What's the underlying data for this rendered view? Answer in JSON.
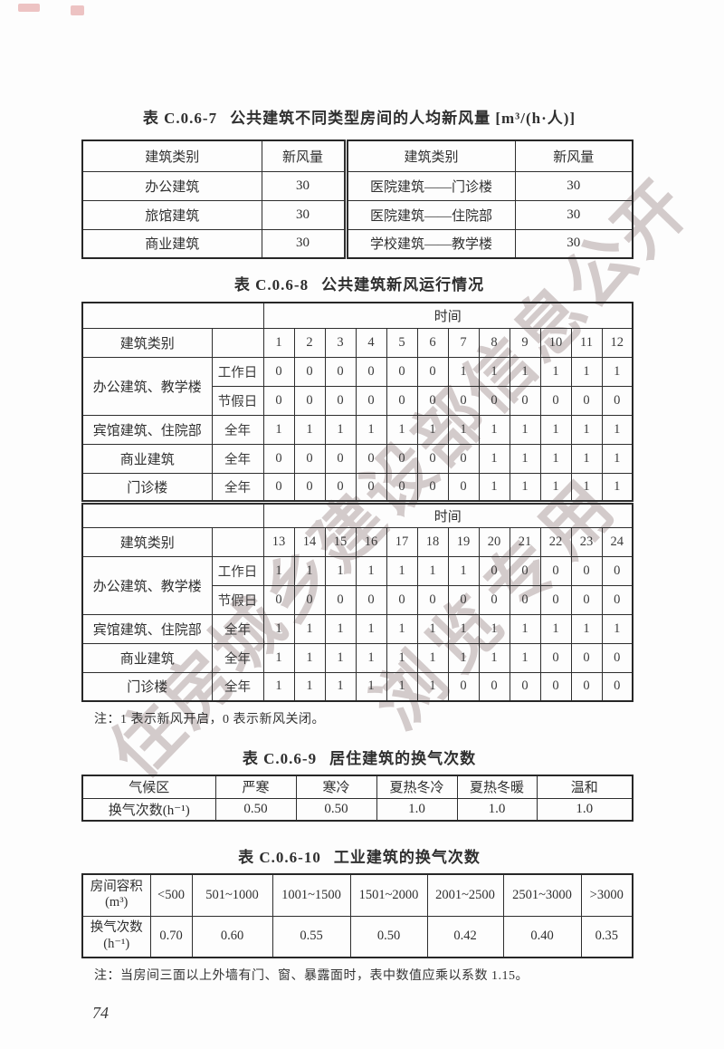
{
  "watermark": {
    "line1": "住房城乡建设部信息公开",
    "line2": "浏览专用",
    "color": "#a69494",
    "stamp_color": "#cd5555"
  },
  "table7": {
    "id": "表 C.0.6-7",
    "title": "公共建筑不同类型房间的人均新风量",
    "unit": "[m³/(h·人)]",
    "headers": [
      "建筑类别",
      "新风量",
      "建筑类别",
      "新风量"
    ],
    "rows": [
      [
        "办公建筑",
        "30",
        "医院建筑——门诊楼",
        "30"
      ],
      [
        "旅馆建筑",
        "30",
        "医院建筑——住院部",
        "30"
      ],
      [
        "商业建筑",
        "30",
        "学校建筑——教学楼",
        "30"
      ]
    ]
  },
  "table8": {
    "id": "表 C.0.6-8",
    "title": "公共建筑新风运行情况",
    "time_header": "时间",
    "category_header": "建筑类别",
    "sections": [
      {
        "hours": [
          "1",
          "2",
          "3",
          "4",
          "5",
          "6",
          "7",
          "8",
          "9",
          "10",
          "11",
          "12"
        ],
        "rows": [
          {
            "category": "办公建筑、教学楼",
            "rowspan": 2,
            "period": "工作日",
            "values": [
              "0",
              "0",
              "0",
              "0",
              "0",
              "0",
              "1",
              "1",
              "1",
              "1",
              "1",
              "1"
            ]
          },
          {
            "period": "节假日",
            "values": [
              "0",
              "0",
              "0",
              "0",
              "0",
              "0",
              "0",
              "0",
              "0",
              "0",
              "0",
              "0"
            ]
          },
          {
            "category": "宾馆建筑、住院部",
            "period": "全年",
            "values": [
              "1",
              "1",
              "1",
              "1",
              "1",
              "1",
              "1",
              "1",
              "1",
              "1",
              "1",
              "1"
            ]
          },
          {
            "category": "商业建筑",
            "period": "全年",
            "values": [
              "0",
              "0",
              "0",
              "0",
              "0",
              "0",
              "0",
              "1",
              "1",
              "1",
              "1",
              "1"
            ]
          },
          {
            "category": "门诊楼",
            "period": "全年",
            "values": [
              "0",
              "0",
              "0",
              "0",
              "0",
              "0",
              "0",
              "1",
              "1",
              "1",
              "1",
              "1"
            ]
          }
        ]
      },
      {
        "hours": [
          "13",
          "14",
          "15",
          "16",
          "17",
          "18",
          "19",
          "20",
          "21",
          "22",
          "23",
          "24"
        ],
        "rows": [
          {
            "category": "办公建筑、教学楼",
            "rowspan": 2,
            "period": "工作日",
            "values": [
              "1",
              "1",
              "1",
              "1",
              "1",
              "1",
              "1",
              "0",
              "0",
              "0",
              "0",
              "0"
            ]
          },
          {
            "period": "节假日",
            "values": [
              "0",
              "0",
              "0",
              "0",
              "0",
              "0",
              "0",
              "0",
              "0",
              "0",
              "0",
              "0"
            ]
          },
          {
            "category": "宾馆建筑、住院部",
            "period": "全年",
            "values": [
              "1",
              "1",
              "1",
              "1",
              "1",
              "1",
              "1",
              "1",
              "1",
              "1",
              "1",
              "1"
            ]
          },
          {
            "category": "商业建筑",
            "period": "全年",
            "values": [
              "1",
              "1",
              "1",
              "1",
              "1",
              "1",
              "1",
              "1",
              "1",
              "0",
              "0",
              "0"
            ]
          },
          {
            "category": "门诊楼",
            "period": "全年",
            "values": [
              "1",
              "1",
              "1",
              "1",
              "1",
              "1",
              "0",
              "0",
              "0",
              "0",
              "0",
              "0"
            ]
          }
        ]
      }
    ],
    "note": "注：1 表示新风开启，0 表示新风关闭。"
  },
  "table9": {
    "id": "表 C.0.6-9",
    "title": "居住建筑的换气次数",
    "headers": [
      "气候区",
      "严寒",
      "寒冷",
      "夏热冬冷",
      "夏热冬暖",
      "温和"
    ],
    "row_label": "换气次数(h⁻¹)",
    "values": [
      "0.50",
      "0.50",
      "1.0",
      "1.0",
      "1.0"
    ]
  },
  "table10": {
    "id": "表 C.0.6-10",
    "title": "工业建筑的换气次数",
    "row1_label": "房间容积",
    "row1_unit": "(m³)",
    "headers": [
      "<500",
      "501~1000",
      "1001~1500",
      "1501~2000",
      "2001~2500",
      "2501~3000",
      ">3000"
    ],
    "row2_label": "换气次数",
    "row2_unit": "(h⁻¹)",
    "values": [
      "0.70",
      "0.60",
      "0.55",
      "0.50",
      "0.42",
      "0.40",
      "0.35"
    ],
    "note": "注：当房间三面以上外墙有门、窗、暴露面时，表中数值应乘以系数 1.15。"
  },
  "page": {
    "number": "74"
  }
}
